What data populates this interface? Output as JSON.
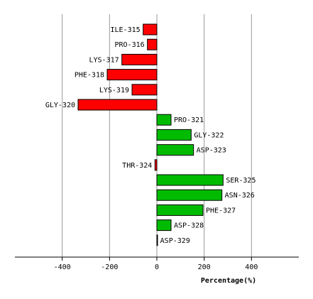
{
  "chart_data": {
    "type": "bar",
    "orientation": "horizontal",
    "title": "",
    "xlabel": "Percentage(%)",
    "ylabel": "",
    "xlim": [
      -600,
      600
    ],
    "xticks": [
      -400,
      -200,
      0,
      200,
      400
    ],
    "xtick_labels": [
      "-400",
      "-200",
      "0",
      "200",
      "400"
    ],
    "grid": true,
    "colors": {
      "negative": "#ff0000",
      "positive": "#00bb00",
      "gridline": "#999999"
    },
    "categories": [
      "ILE-315",
      "PRO-316",
      "LYS-317",
      "PHE-318",
      "LYS-319",
      "GLY-320",
      "PRO-321",
      "GLY-322",
      "ASP-323",
      "THR-324",
      "SER-325",
      "ASN-326",
      "PHE-327",
      "ASP-328",
      "ASP-329"
    ],
    "values": [
      -58,
      -40,
      -148,
      -210,
      -105,
      -333,
      60,
      145,
      155,
      -8,
      280,
      275,
      195,
      60,
      2
    ]
  }
}
